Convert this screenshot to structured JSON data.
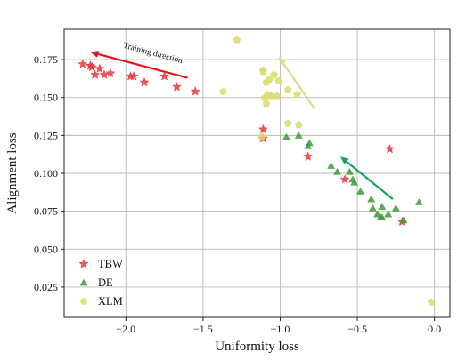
{
  "chart_data": {
    "type": "scatter",
    "xlabel": "Uniformity loss",
    "ylabel": "Alignment loss",
    "xlim": [
      -2.4,
      0.1
    ],
    "ylim": [
      0.005,
      0.195
    ],
    "xticks": [
      -2.0,
      -1.5,
      -1.0,
      -0.5,
      0.0
    ],
    "xtick_labels": [
      "−2.0",
      "−1.5",
      "−1.0",
      "−0.5",
      "0.0"
    ],
    "yticks": [
      0.025,
      0.05,
      0.075,
      0.1,
      0.125,
      0.15,
      0.175
    ],
    "ytick_labels": [
      "0.025",
      "0.050",
      "0.075",
      "0.100",
      "0.125",
      "0.150",
      "0.175"
    ],
    "grid": true,
    "legend_position": "bottom-left",
    "series": [
      {
        "name": "TBW",
        "marker": "star",
        "color": "#e8383d",
        "points": [
          [
            -2.28,
            0.172
          ],
          [
            -2.23,
            0.171
          ],
          [
            -2.22,
            0.17
          ],
          [
            -2.2,
            0.165
          ],
          [
            -2.17,
            0.169
          ],
          [
            -2.14,
            0.165
          ],
          [
            -2.1,
            0.166
          ],
          [
            -1.97,
            0.164
          ],
          [
            -1.95,
            0.164
          ],
          [
            -1.88,
            0.16
          ],
          [
            -1.75,
            0.164
          ],
          [
            -1.67,
            0.157
          ],
          [
            -1.55,
            0.154
          ],
          [
            -1.11,
            0.129
          ],
          [
            -1.11,
            0.123
          ],
          [
            -0.82,
            0.111
          ],
          [
            -0.58,
            0.096
          ],
          [
            -0.29,
            0.116
          ],
          [
            -0.21,
            0.068
          ]
        ]
      },
      {
        "name": "DE",
        "marker": "triangle",
        "color": "#3f9b3a",
        "points": [
          [
            -0.96,
            0.124
          ],
          [
            -0.88,
            0.125
          ],
          [
            -0.81,
            0.12
          ],
          [
            -0.82,
            0.118
          ],
          [
            -0.67,
            0.105
          ],
          [
            -0.63,
            0.101
          ],
          [
            -0.55,
            0.101
          ],
          [
            -0.53,
            0.096
          ],
          [
            -0.52,
            0.094
          ],
          [
            -0.48,
            0.088
          ],
          [
            -0.41,
            0.083
          ],
          [
            -0.4,
            0.077
          ],
          [
            -0.37,
            0.073
          ],
          [
            -0.35,
            0.071
          ],
          [
            -0.34,
            0.071
          ],
          [
            -0.3,
            0.073
          ],
          [
            -0.34,
            0.078
          ],
          [
            -0.25,
            0.077
          ],
          [
            -0.2,
            0.069
          ],
          [
            -0.1,
            0.081
          ]
        ]
      },
      {
        "name": "XLM",
        "marker": "pentagon",
        "color": "#dadd6a",
        "points": [
          [
            -1.28,
            0.188
          ],
          [
            -1.37,
            0.154
          ],
          [
            -1.11,
            0.168
          ],
          [
            -1.11,
            0.167
          ],
          [
            -1.09,
            0.16
          ],
          [
            -1.07,
            0.162
          ],
          [
            -1.04,
            0.165
          ],
          [
            -1.01,
            0.161
          ],
          [
            -0.95,
            0.155
          ],
          [
            -0.89,
            0.152
          ],
          [
            -1.1,
            0.15
          ],
          [
            -1.08,
            0.152
          ],
          [
            -1.06,
            0.151
          ],
          [
            -1.02,
            0.151
          ],
          [
            -1.09,
            0.146
          ],
          [
            -0.95,
            0.133
          ],
          [
            -0.88,
            0.132
          ],
          [
            -1.12,
            0.124
          ],
          [
            -0.02,
            0.015
          ]
        ]
      }
    ],
    "arrows": [
      {
        "color": "#e8131a",
        "from": [
          -1.6,
          0.163
        ],
        "to": [
          -2.23,
          0.18
        ]
      },
      {
        "color": "#dadd8a",
        "from": [
          -0.78,
          0.143
        ],
        "to": [
          -1.01,
          0.177
        ]
      },
      {
        "color": "#13a65a",
        "from": [
          -0.27,
          0.083
        ],
        "to": [
          -0.61,
          0.111
        ]
      }
    ],
    "annotations": [
      {
        "text": "Training direction",
        "x": -2.02,
        "y": 0.183,
        "rotation": 15
      }
    ]
  }
}
